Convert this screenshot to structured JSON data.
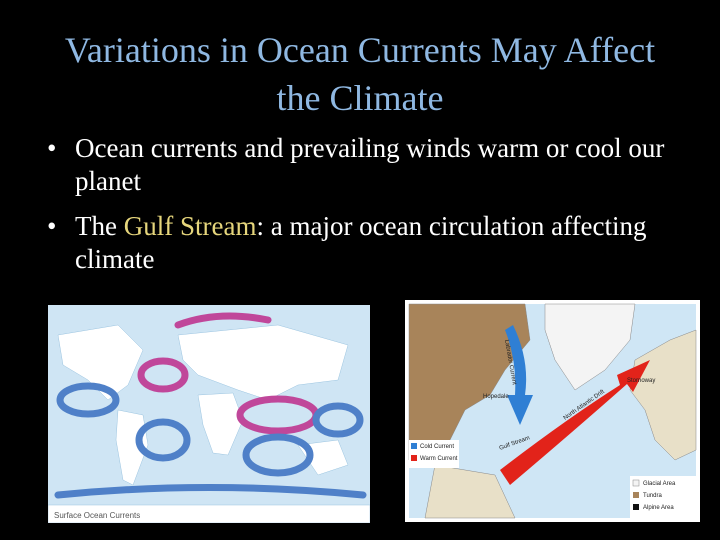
{
  "title": "Variations in Ocean Currents May Affect the Climate",
  "bullets": [
    {
      "parts": [
        "Ocean currents and prevailing winds warm or cool our planet"
      ]
    },
    {
      "parts": [
        "The ",
        "Gulf Stream",
        ": a major ocean circulation affecting climate"
      ]
    }
  ],
  "figures": [
    {
      "caption": "Surface Ocean Currents"
    },
    {
      "labels": [
        "Labrador Current",
        "Hopedale",
        "North Atlantic Drift",
        "Stornoway",
        "Gulf Stream"
      ],
      "legend": [
        "Cold Current",
        "Warm Current",
        "Glacial Area",
        "Tundra",
        "Alpine Area"
      ]
    }
  ]
}
